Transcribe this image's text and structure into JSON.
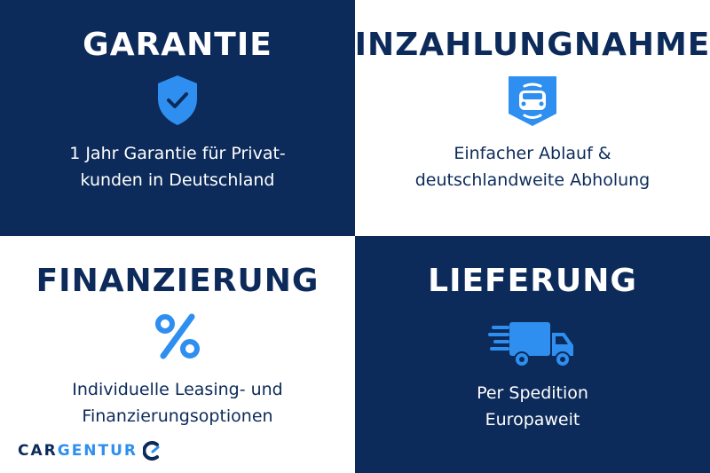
{
  "colors": {
    "navy": "#0c2b5a",
    "accent": "#2e8ff0",
    "white": "#ffffff"
  },
  "tiles": [
    {
      "title": "GARANTIE",
      "icon": "shield-check-icon",
      "lines": [
        "1 Jahr Garantie für Privat-",
        "kunden in Deutschland"
      ]
    },
    {
      "title": "INZAHLUNGNAHME",
      "icon": "car-badge-icon",
      "lines": [
        "Einfacher Ablauf &",
        "deutschlandweite Abholung"
      ]
    },
    {
      "title": "FINANZIERUNG",
      "icon": "percent-icon",
      "lines": [
        "Individuelle Leasing- und",
        "Finanzierungsoptionen"
      ]
    },
    {
      "title": "LIEFERUNG",
      "icon": "delivery-truck-icon",
      "lines": [
        "Per Spedition",
        "Europaweit"
      ]
    }
  ],
  "logo": {
    "part1": "CAR",
    "part2": "GENTUR"
  }
}
